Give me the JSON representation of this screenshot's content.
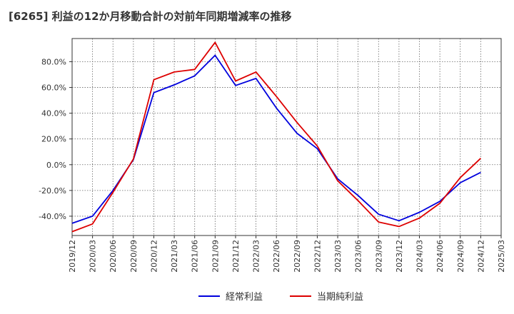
{
  "chart_data": {
    "type": "line",
    "title": "[6265]  利益の12か月移動合計の対前年同期増減率の推移",
    "xlabel": "",
    "ylabel": "",
    "x": [
      "2019/12",
      "2020/03",
      "2020/06",
      "2020/09",
      "2020/12",
      "2021/03",
      "2021/06",
      "2021/09",
      "2021/12",
      "2022/03",
      "2022/06",
      "2022/09",
      "2022/12",
      "2023/03",
      "2023/06",
      "2023/09",
      "2023/12",
      "2024/03",
      "2024/06",
      "2024/09",
      "2024/12",
      "2025/03"
    ],
    "ylim": [
      -55,
      98
    ],
    "yticks": [
      -40,
      -20,
      0,
      20,
      40,
      60,
      80
    ],
    "ytick_labels": [
      "-40.0%",
      "-20.0%",
      "0.0%",
      "20.0%",
      "40.0%",
      "60.0%",
      "80.0%"
    ],
    "grid": true,
    "legend_position": "bottom-center",
    "series": [
      {
        "name": "経常利益",
        "color": "#0000dd",
        "values": [
          -45.5,
          -40,
          -20,
          4,
          56,
          62,
          69,
          85,
          61.5,
          67,
          44,
          24.5,
          12.5,
          -11,
          -24,
          -38.5,
          -43.5,
          -37,
          -28.5,
          -14,
          -6,
          null
        ]
      },
      {
        "name": "当期純利益",
        "color": "#dd0000",
        "values": [
          -52,
          -46,
          -21.5,
          4.5,
          66,
          72,
          74,
          95,
          65,
          72,
          53,
          33,
          14.5,
          -12.5,
          -28,
          -44.5,
          -48,
          -41.5,
          -30,
          -10,
          5,
          null
        ]
      }
    ]
  }
}
